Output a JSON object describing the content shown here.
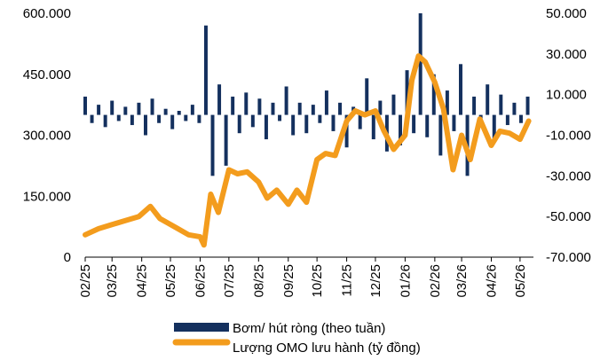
{
  "chart_data": {
    "type": "bar+line",
    "title": "",
    "x_tick_labels": [
      "02/25",
      "03/25",
      "04/25",
      "05/25",
      "06/25",
      "07/25",
      "08/25",
      "09/25",
      "10/25",
      "11/25",
      "12/25",
      "01/26",
      "02/26",
      "03/26",
      "04/26",
      "05/26"
    ],
    "y_left": {
      "ticks": [
        "0",
        "150.000",
        "300.000",
        "450.000",
        "600.000"
      ],
      "range": [
        0,
        600000
      ]
    },
    "y_right": {
      "ticks": [
        "-70.000",
        "-50.000",
        "-30.000",
        "-10.000",
        "10.000",
        "30.000",
        "50.000"
      ],
      "range": [
        -70000,
        50000
      ]
    },
    "grid": false,
    "legend_placement": "bottom",
    "colors": {
      "bars": "#14305e",
      "line": "#f39c1d"
    },
    "series": [
      {
        "name": "Bơm/ hút ròng (theo tuần)",
        "kind": "bar",
        "axis": "right",
        "week_starts": [
          "2025-02-01",
          "2025-02-08",
          "2025-02-15",
          "2025-02-22",
          "2025-03-01",
          "2025-03-08",
          "2025-03-15",
          "2025-03-22",
          "2025-03-29",
          "2025-04-05",
          "2025-04-12",
          "2025-04-19",
          "2025-04-26",
          "2025-05-03",
          "2025-05-10",
          "2025-05-17",
          "2025-05-24",
          "2025-05-31",
          "2025-06-07",
          "2025-06-14",
          "2025-06-21",
          "2025-06-28",
          "2025-07-05",
          "2025-07-12",
          "2025-07-19",
          "2025-07-26",
          "2025-08-02",
          "2025-08-09",
          "2025-08-16",
          "2025-08-23",
          "2025-08-30",
          "2025-09-06",
          "2025-09-13",
          "2025-09-20",
          "2025-09-27",
          "2025-10-04",
          "2025-10-11",
          "2025-10-18",
          "2025-10-25",
          "2025-11-01",
          "2025-11-08",
          "2025-11-15",
          "2025-11-22",
          "2025-11-29",
          "2025-12-06",
          "2025-12-13",
          "2025-12-20",
          "2025-12-27",
          "2026-01-03",
          "2026-01-10",
          "2026-01-17",
          "2026-01-24",
          "2026-01-31",
          "2026-02-07",
          "2026-02-14",
          "2026-02-21",
          "2026-02-28",
          "2026-03-07",
          "2026-03-14",
          "2026-03-21",
          "2026-03-28",
          "2026-04-04",
          "2026-04-11",
          "2026-04-18",
          "2026-04-25",
          "2026-05-02",
          "2026-05-09"
        ],
        "values": [
          9000,
          -4000,
          5000,
          -6000,
          7000,
          -3000,
          4000,
          -5000,
          6000,
          -10000,
          8000,
          -4000,
          3000,
          -7000,
          2000,
          -3000,
          5000,
          -4000,
          44000,
          -30000,
          15000,
          -25000,
          9000,
          -9000,
          11000,
          -6000,
          8000,
          -12000,
          6000,
          -3000,
          14000,
          -10000,
          6000,
          -9000,
          5000,
          -4000,
          12000,
          -8000,
          6000,
          -16000,
          4000,
          -7000,
          18000,
          -12000,
          7000,
          -18000,
          10000,
          -15000,
          22000,
          -9000,
          50000,
          -11000,
          20000,
          -20000,
          12000,
          -8000,
          25000,
          -30000,
          9000,
          -6000,
          15000,
          -12000,
          10000,
          -5000,
          6000,
          -4000,
          9000
        ]
      },
      {
        "name": "Lượng OMO lưu hành (tỷ đồng)",
        "kind": "line",
        "axis": "right",
        "x": [
          "2025-02-01",
          "2025-02-15",
          "2025-03-01",
          "2025-03-15",
          "2025-03-29",
          "2025-04-10",
          "2025-04-20",
          "2025-05-05",
          "2025-05-20",
          "2025-06-01",
          "2025-06-05",
          "2025-06-12",
          "2025-06-20",
          "2025-07-01",
          "2025-07-10",
          "2025-07-20",
          "2025-08-01",
          "2025-08-10",
          "2025-08-20",
          "2025-09-01",
          "2025-09-10",
          "2025-09-20",
          "2025-10-01",
          "2025-10-10",
          "2025-10-20",
          "2025-11-01",
          "2025-11-10",
          "2025-11-20",
          "2025-12-01",
          "2025-12-10",
          "2025-12-20",
          "2026-01-01",
          "2026-01-08",
          "2026-01-15",
          "2026-01-22",
          "2026-02-01",
          "2026-02-10",
          "2026-02-20",
          "2026-03-01",
          "2026-03-10",
          "2026-03-20",
          "2026-04-01",
          "2026-04-10",
          "2026-04-20",
          "2026-05-01",
          "2026-05-10"
        ],
        "y": [
          -59000,
          -56000,
          -54000,
          -52000,
          -50000,
          -45000,
          -51000,
          -55000,
          -59000,
          -60000,
          -64000,
          -39000,
          -48000,
          -27000,
          -29000,
          -28000,
          -33000,
          -41000,
          -37000,
          -44000,
          -37000,
          -43000,
          -22000,
          -19000,
          -20000,
          -3000,
          2000,
          0,
          2000,
          -8000,
          -17000,
          -10000,
          17000,
          29000,
          26000,
          16000,
          3000,
          -27000,
          -10000,
          -22000,
          -2000,
          -15000,
          -8000,
          -9000,
          -12000,
          -3000
        ]
      }
    ]
  }
}
